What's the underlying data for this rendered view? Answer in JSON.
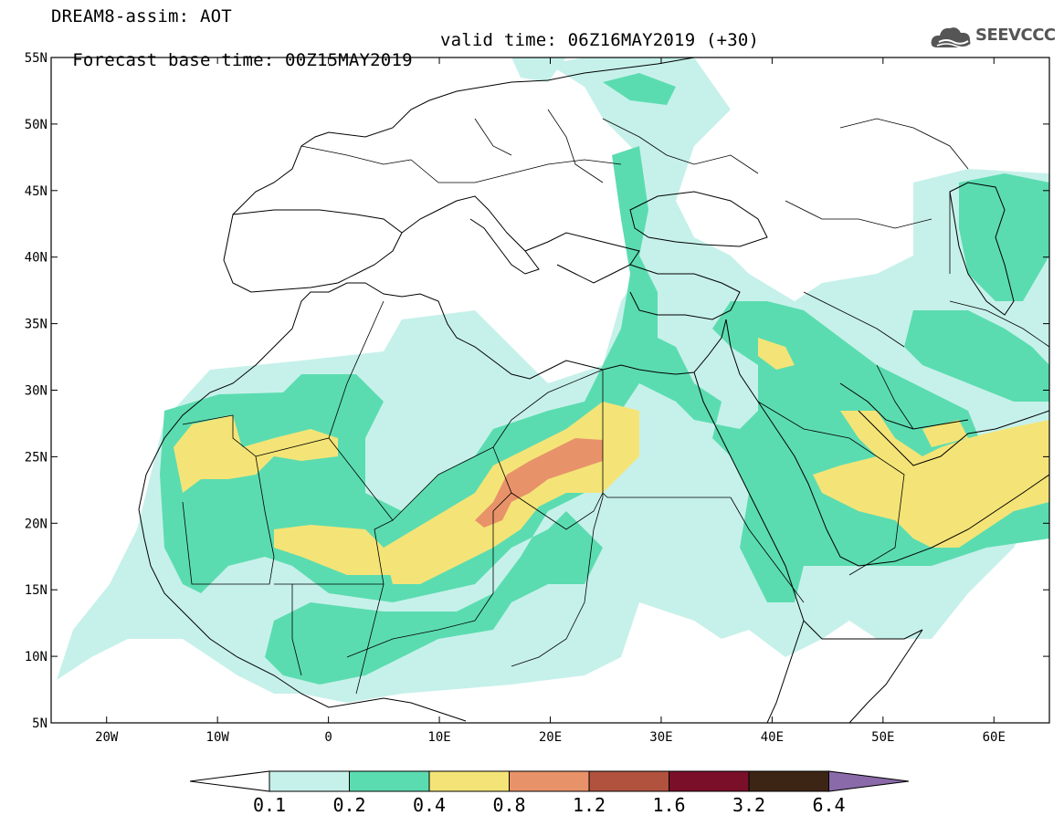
{
  "header": {
    "title": "DREAM8-assim: AOT",
    "base_time": "Forecast base time: 00Z15MAY2019",
    "valid_time": "valid time: 06Z16MAY2019 (+30)",
    "logo_text": "SEEVCCC"
  },
  "map": {
    "projection": "cylindrical equidistant",
    "lon_range": [
      -25,
      65
    ],
    "lat_range": [
      5,
      55
    ],
    "lat_ticks": [
      "5N",
      "10N",
      "15N",
      "20N",
      "25N",
      "30N",
      "35N",
      "40N",
      "45N",
      "50N",
      "55N"
    ],
    "lon_ticks": [
      "20W",
      "10W",
      "0",
      "10E",
      "20E",
      "30E",
      "40E",
      "50E",
      "60E"
    ],
    "field": "Aerosol optical thickness (dust)",
    "max_region": "central Sahara around 16E–25E, 20N–26N (AOT 0.8–1.2)"
  },
  "colorbar": {
    "labels": [
      "0.1",
      "0.2",
      "0.4",
      "0.8",
      "1.2",
      "1.6",
      "3.2",
      "6.4"
    ],
    "colors": [
      "#c6f1ea",
      "#5bdcb0",
      "#f4e477",
      "#e8926a",
      "#b0523e",
      "#7a0f2a",
      "#3d2516",
      "#8a6aa8"
    ],
    "under_color": "#ffffff"
  }
}
